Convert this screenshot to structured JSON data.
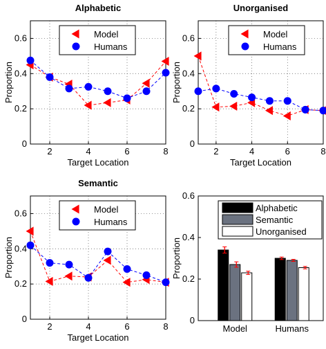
{
  "chart_data": [
    {
      "type": "line",
      "title": "Alphabetic",
      "xlabel": "Target Location",
      "ylabel": "Proportion",
      "xlim": [
        1,
        8
      ],
      "ylim": [
        0,
        0.7
      ],
      "xticks": [
        "2",
        "4",
        "6",
        "8"
      ],
      "yticks": [
        "0",
        "0.2",
        "0.4",
        "0.6"
      ],
      "grid": true,
      "legend": "top-center",
      "x": [
        1,
        2,
        3,
        4,
        5,
        6,
        7,
        8
      ],
      "series": [
        {
          "name": "Model",
          "color": "#ff0000",
          "marker": "triangle-left",
          "values": [
            0.45,
            0.38,
            0.34,
            0.22,
            0.235,
            0.25,
            0.345,
            0.47
          ]
        },
        {
          "name": "Humans",
          "color": "#0000ff",
          "marker": "circle",
          "values": [
            0.475,
            0.38,
            0.315,
            0.325,
            0.3,
            0.26,
            0.3,
            0.405
          ]
        }
      ]
    },
    {
      "type": "line",
      "title": "Unorganised",
      "xlabel": "Target Location",
      "ylabel": "Proportion",
      "xlim": [
        1,
        8
      ],
      "ylim": [
        0,
        0.7
      ],
      "xticks": [
        "2",
        "4",
        "6",
        "8"
      ],
      "yticks": [
        "0",
        "0.2",
        "0.4",
        "0.6"
      ],
      "grid": true,
      "legend": "top-center",
      "x": [
        1,
        2,
        3,
        4,
        5,
        6,
        7,
        8
      ],
      "series": [
        {
          "name": "Model",
          "color": "#ff0000",
          "marker": "triangle-left",
          "values": [
            0.5,
            0.21,
            0.215,
            0.235,
            0.19,
            0.16,
            0.195,
            0.19
          ]
        },
        {
          "name": "Humans",
          "color": "#0000ff",
          "marker": "circle",
          "values": [
            0.3,
            0.315,
            0.285,
            0.265,
            0.245,
            0.245,
            0.195,
            0.19
          ]
        }
      ]
    },
    {
      "type": "line",
      "title": "Semantic",
      "xlabel": "Target Location",
      "ylabel": "Proportion",
      "xlim": [
        1,
        8
      ],
      "ylim": [
        0,
        0.7
      ],
      "xticks": [
        "2",
        "4",
        "6",
        "8"
      ],
      "yticks": [
        "0",
        "0.2",
        "0.4",
        "0.6"
      ],
      "grid": true,
      "legend": "top-center",
      "x": [
        1,
        2,
        3,
        4,
        5,
        6,
        7,
        8
      ],
      "series": [
        {
          "name": "Model",
          "color": "#ff0000",
          "marker": "triangle-left",
          "values": [
            0.5,
            0.215,
            0.245,
            0.24,
            0.335,
            0.21,
            0.225,
            0.21
          ]
        },
        {
          "name": "Humans",
          "color": "#0000ff",
          "marker": "circle",
          "values": [
            0.42,
            0.32,
            0.31,
            0.235,
            0.385,
            0.285,
            0.25,
            0.21
          ]
        }
      ]
    },
    {
      "type": "bar",
      "title": "",
      "xlabel": "",
      "ylabel": "Proportion",
      "ylim": [
        0,
        0.6
      ],
      "yticks": [
        "0",
        "0.2",
        "0.4",
        "0.6"
      ],
      "grid": false,
      "legend": "top-right",
      "categories": [
        "Model",
        "Humans"
      ],
      "series": [
        {
          "name": "Alphabetic",
          "color": "#000000",
          "values": [
            0.34,
            0.3
          ],
          "errors": [
            0.015,
            0.006
          ]
        },
        {
          "name": "Semantic",
          "color": "#6b7280",
          "values": [
            0.27,
            0.29
          ],
          "errors": [
            0.013,
            0.005
          ]
        },
        {
          "name": "Unorganised",
          "color": "#ffffff",
          "values": [
            0.23,
            0.255
          ],
          "errors": [
            0.008,
            0.006
          ]
        }
      ]
    }
  ]
}
